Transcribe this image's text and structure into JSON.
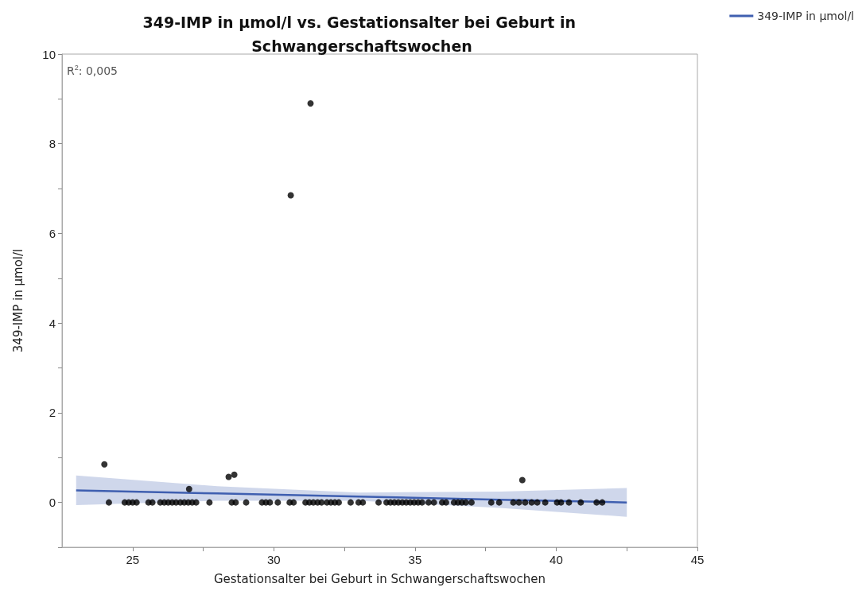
{
  "chart_data": {
    "type": "scatter",
    "title": "349-IMP in µmol/l vs. Gestationsalter bei Geburt in Schwangerschaftswochen",
    "xlabel": "Gestationsalter bei Geburt in Schwangerschaftswochen",
    "ylabel": "349-IMP in µmol/l",
    "annotations": [
      "R$^{2}$: 0,005"
    ],
    "xlim": [
      22.5,
      45
    ],
    "xticks": [
      25,
      {
        "value": 27.5,
        "label": null
      },
      30,
      {
        "value": 32.5,
        "label": null
      },
      35,
      {
        "value": 37.5,
        "label": null
      },
      40,
      {
        "value": 42.5,
        "label": null
      },
      45
    ],
    "ylim": [
      -1,
      10
    ],
    "yticks": [
      {
        "value": -1,
        "label": null
      },
      0,
      {
        "value": 1,
        "label": null
      },
      2,
      {
        "value": 3,
        "label": null
      },
      4,
      {
        "value": 5,
        "label": null
      },
      6,
      {
        "value": 7,
        "label": null
      },
      8,
      {
        "value": 9,
        "label": null
      },
      10
    ],
    "grid": false,
    "legend": "top right",
    "series": [
      {
        "marker": "circle",
        "color": "#000000",
        "x": [
          24,
          27,
          28.4,
          28.6,
          30.6,
          31.3,
          38.8,
          24.16,
          24.72,
          24.86,
          25,
          25.14,
          25.56,
          25.7,
          25.98,
          26.12,
          26.26,
          26.4,
          26.54,
          26.69,
          26.83,
          26.97,
          27.11,
          27.25,
          27.72,
          28.51,
          28.65,
          29.02,
          29.58,
          29.72,
          29.86,
          30.14,
          30.56,
          30.7,
          31.12,
          31.26,
          31.4,
          31.55,
          31.69,
          31.88,
          32.02,
          32.16,
          32.3,
          32.72,
          33,
          33.15,
          33.71,
          33.99,
          34.13,
          34.27,
          34.41,
          34.55,
          34.69,
          34.83,
          34.97,
          35.11,
          35.25,
          35.48,
          35.67,
          35.96,
          36.1,
          36.38,
          36.52,
          36.66,
          36.8,
          37,
          37.7,
          37.98,
          38.48,
          38.68,
          38.9,
          39.13,
          39.33,
          39.61,
          40.03,
          40.17,
          40.45,
          40.87,
          41.43,
          41.63
        ],
        "values": [
          0.85,
          0.3,
          0.57,
          0.62,
          6.85,
          8.9,
          0.5,
          0,
          0,
          0,
          0,
          0,
          0,
          0,
          0,
          0,
          0,
          0,
          0,
          0,
          0,
          0,
          0,
          0,
          0,
          0,
          0,
          0,
          0,
          0,
          0,
          0,
          0,
          0,
          0,
          0,
          0,
          0,
          0,
          0,
          0,
          0,
          0,
          0,
          0,
          0,
          0,
          0,
          0,
          0,
          0,
          0,
          0,
          0,
          0,
          0,
          0,
          0,
          0,
          0,
          0,
          0,
          0,
          0,
          0,
          0,
          0,
          0,
          0,
          0,
          0,
          0,
          0,
          0,
          0,
          0,
          0,
          0,
          0,
          0
        ]
      },
      {
        "type": "line",
        "marker": "none",
        "name": "349-IMP in µmol/l",
        "color": "#3f5fb0",
        "x": [
          23,
          28,
          33,
          38,
          42.5
        ],
        "values": [
          0.27,
          0.2,
          0.13,
          0.06,
          0
        ],
        "lower": [
          -0.06,
          0.04,
          0.04,
          -0.12,
          -0.32
        ],
        "upper": [
          0.6,
          0.36,
          0.22,
          0.24,
          0.32
        ]
      }
    ]
  }
}
